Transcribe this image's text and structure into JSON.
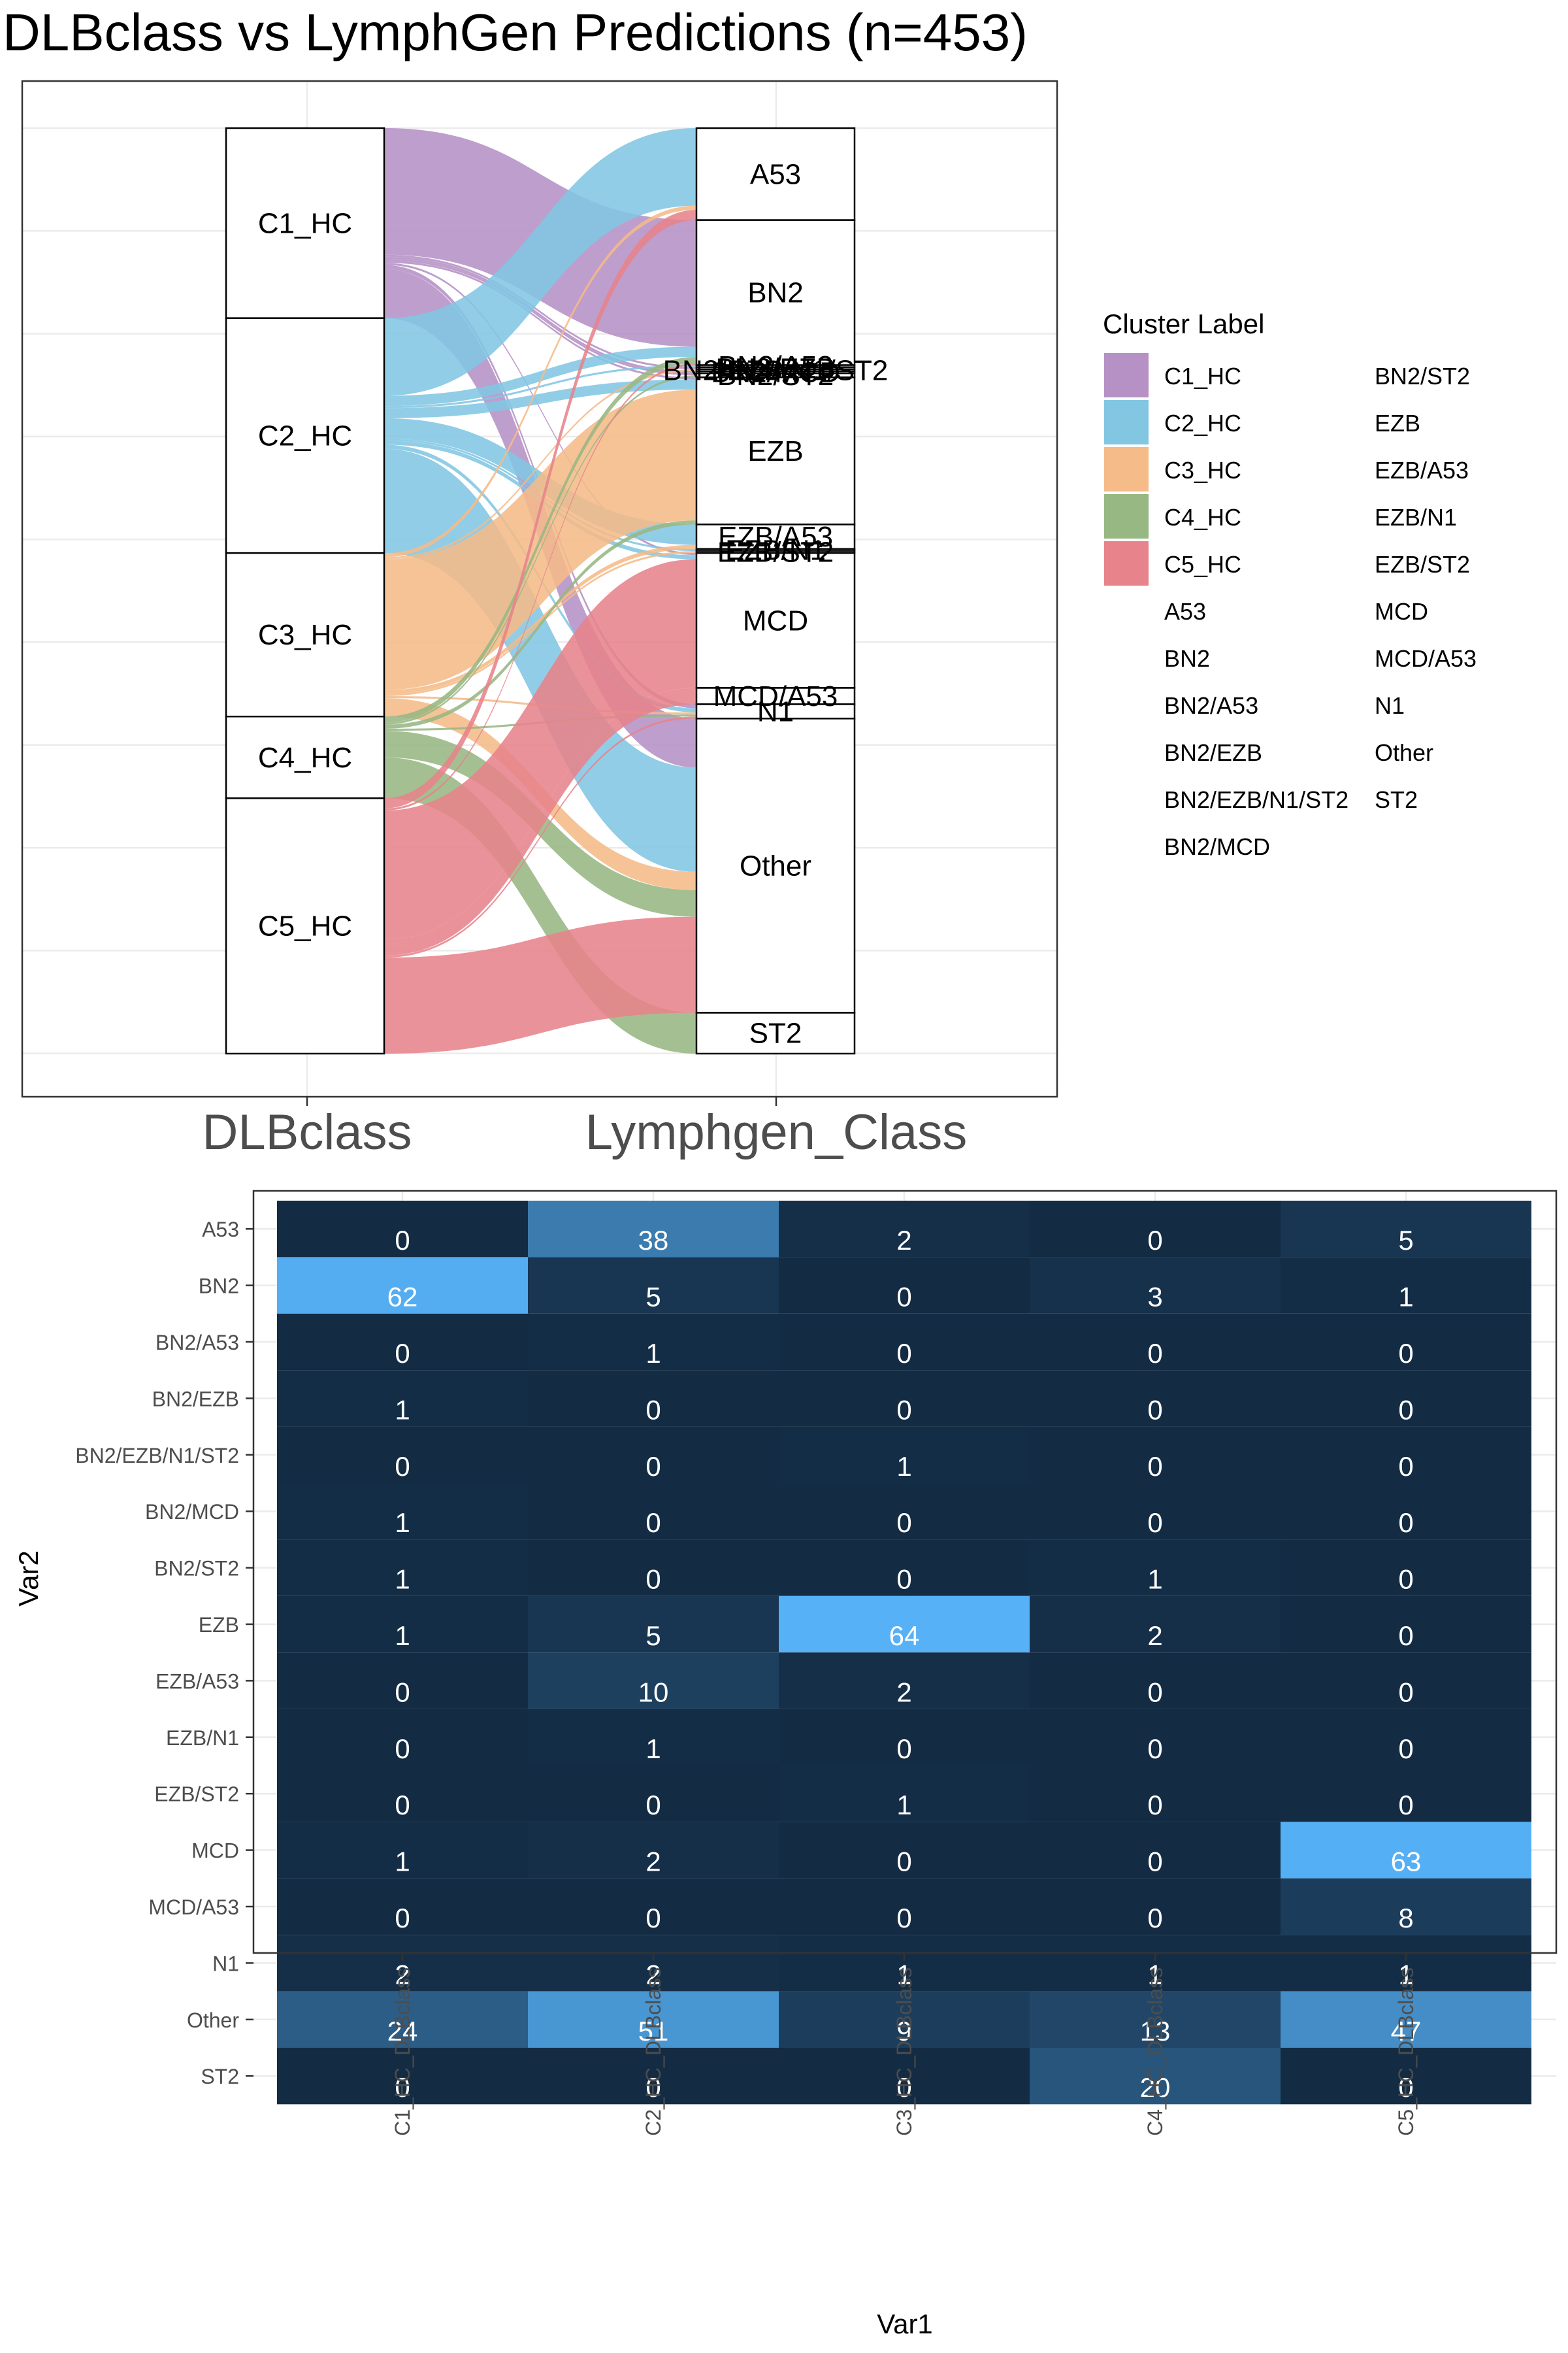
{
  "page": {
    "title": "DLBclass vs LymphGen Predictions (n=453)"
  },
  "chart_data": [
    {
      "type": "alluvial",
      "axis_labels": [
        "DLBclass",
        "Lymphgen_Class"
      ],
      "left_strata": [
        "C1_HC",
        "C2_HC",
        "C3_HC",
        "C4_HC",
        "C5_HC"
      ],
      "right_strata": [
        "A53",
        "BN2",
        "BN2/A53",
        "BN2/EZB",
        "BN2/EZB/N1/ST2",
        "BN2/MCD",
        "BN2/ST2",
        "EZB",
        "EZB/A53",
        "EZB/N1",
        "EZB/ST2",
        "MCD",
        "MCD/A53",
        "N1",
        "Other",
        "ST2"
      ],
      "colors": [
        "#b591c5",
        "#82c6e2",
        "#f5bb89",
        "#97b783",
        "#e7838b"
      ],
      "legend": {
        "title": "Cluster Label",
        "position": "right",
        "entries": [
          "C1_HC",
          "C2_HC",
          "C3_HC",
          "C4_HC",
          "C5_HC",
          "A53",
          "BN2",
          "BN2/A53",
          "BN2/EZB",
          "BN2/EZB/N1/ST2",
          "BN2/MCD",
          "BN2/ST2",
          "EZB",
          "EZB/A53",
          "EZB/N1",
          "EZB/ST2",
          "MCD",
          "MCD/A53",
          "N1",
          "Other",
          "ST2"
        ]
      }
    },
    {
      "type": "heatmap",
      "xlabel": "Var1",
      "ylabel": "Var2",
      "x_categories": [
        "C1_HC_DLBclass",
        "C2_HC_DLBclass",
        "C3_HC_DLBclass",
        "C4_HC_DLBclass",
        "C5_HC_DLBclass"
      ],
      "y_categories": [
        "A53",
        "BN2",
        "BN2/A53",
        "BN2/EZB",
        "BN2/EZB/N1/ST2",
        "BN2/MCD",
        "BN2/ST2",
        "EZB",
        "EZB/A53",
        "EZB/N1",
        "EZB/ST2",
        "MCD",
        "MCD/A53",
        "N1",
        "Other",
        "ST2"
      ],
      "values": [
        [
          0,
          38,
          2,
          0,
          5
        ],
        [
          62,
          5,
          0,
          3,
          1
        ],
        [
          0,
          1,
          0,
          0,
          0
        ],
        [
          1,
          0,
          0,
          0,
          0
        ],
        [
          0,
          0,
          1,
          0,
          0
        ],
        [
          1,
          0,
          0,
          0,
          0
        ],
        [
          1,
          0,
          0,
          1,
          0
        ],
        [
          1,
          5,
          64,
          2,
          0
        ],
        [
          0,
          10,
          2,
          0,
          0
        ],
        [
          0,
          1,
          0,
          0,
          0
        ],
        [
          0,
          0,
          1,
          0,
          0
        ],
        [
          1,
          2,
          0,
          0,
          63
        ],
        [
          0,
          0,
          0,
          0,
          8
        ],
        [
          2,
          2,
          1,
          1,
          1
        ],
        [
          24,
          51,
          9,
          13,
          47
        ],
        [
          0,
          0,
          0,
          20,
          0
        ]
      ],
      "color_low": "#132b43",
      "color_high": "#56b1f7"
    }
  ]
}
